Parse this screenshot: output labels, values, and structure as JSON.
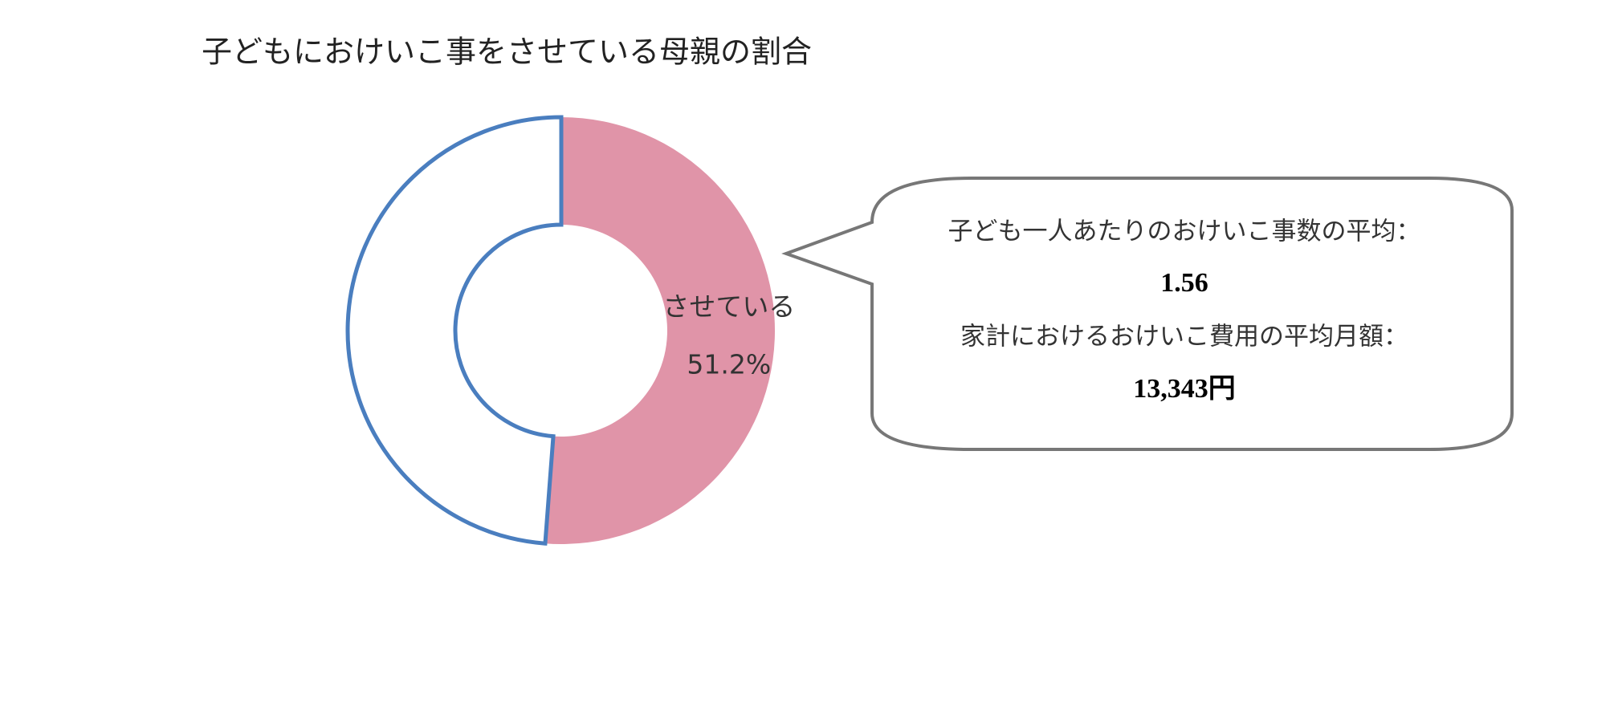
{
  "chart_data": {
    "type": "donut",
    "title": "子どもにおけいこ事をさせている母親の割合",
    "categories": [
      "させている",
      null
    ],
    "values": [
      51.2,
      48.8
    ],
    "value_labels": [
      "51.2%",
      null
    ],
    "colors": [
      "#e094a8",
      "#ffffff"
    ],
    "outline": "#4a7ebf",
    "annotations": [
      "子ども一人あたりのおけいこ事数の平均：",
      "1.56",
      "家計におけるおけいこ費用の平均月額：",
      "13,343円"
    ]
  }
}
